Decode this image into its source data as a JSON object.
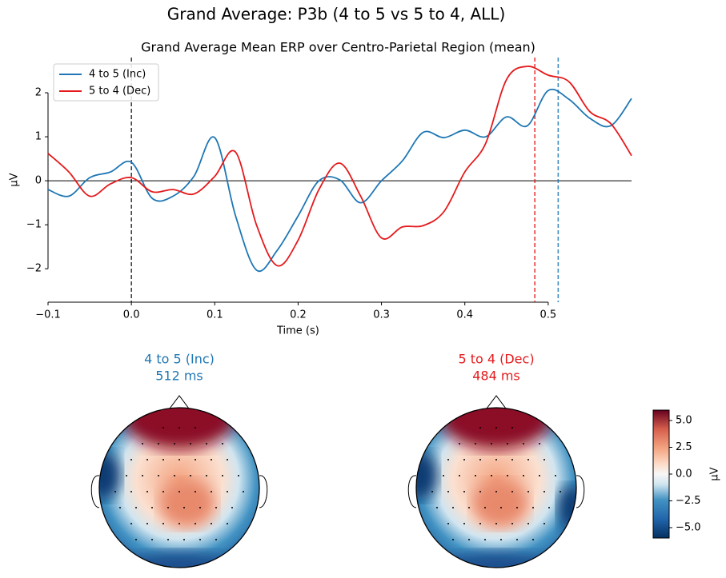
{
  "suptitle": "Grand Average: P3b (4 to 5 vs 5 to 4, ALL)",
  "chart_data": [
    {
      "type": "line",
      "title": "Grand Average Mean ERP over Centro-Parietal Region (mean)",
      "xlabel": "Time (s)",
      "ylabel": "µV",
      "x": [
        -0.1,
        -0.075,
        -0.05,
        -0.025,
        0,
        0.025,
        0.05,
        0.075,
        0.1,
        0.125,
        0.15,
        0.175,
        0.2,
        0.225,
        0.25,
        0.275,
        0.3,
        0.325,
        0.35,
        0.375,
        0.4,
        0.425,
        0.45,
        0.475,
        0.5,
        0.525,
        0.55,
        0.575,
        0.6
      ],
      "series": [
        {
          "name": "4 to 5 (Inc)",
          "color": "#1f77b4",
          "values": [
            -0.2,
            -0.35,
            0.07,
            0.2,
            0.42,
            -0.4,
            -0.35,
            0.1,
            0.98,
            -0.8,
            -2.03,
            -1.58,
            -0.8,
            0,
            0.02,
            -0.5,
            0,
            0.45,
            1.1,
            0.98,
            1.15,
            1.0,
            1.45,
            1.25,
            2.05,
            1.85,
            1.42,
            1.25,
            1.87
          ]
        },
        {
          "name": "5 to 4 (Dec)",
          "color": "#e41a1c",
          "values": [
            0.62,
            0.2,
            -0.35,
            -0.07,
            0.07,
            -0.25,
            -0.2,
            -0.3,
            0.1,
            0.65,
            -1.0,
            -1.93,
            -1.35,
            -0.2,
            0.4,
            -0.35,
            -1.3,
            -1.05,
            -1.02,
            -0.7,
            0.2,
            0.85,
            2.3,
            2.6,
            2.4,
            2.25,
            1.57,
            1.3,
            0.57
          ]
        }
      ],
      "vlines": [
        {
          "x": 0,
          "color": "#000000"
        },
        {
          "x": 0.484,
          "color": "#e41a1c"
        },
        {
          "x": 0.512,
          "color": "#1f77b4"
        }
      ],
      "hline": 0,
      "xlim": [
        -0.1,
        0.6
      ],
      "ylim": [
        -2.76,
        2.8
      ],
      "xticks": [
        {
          "value": -0.1,
          "label": "−0.1"
        },
        {
          "value": 0,
          "label": "0.0"
        },
        0.1,
        0.2,
        0.3,
        0.4,
        0.5
      ],
      "yticks": [
        {
          "value": -2,
          "label": "−2"
        },
        {
          "value": -1,
          "label": "−1"
        },
        0,
        1,
        2
      ],
      "legend": "upper left"
    },
    {
      "type": "topomap",
      "maps": [
        {
          "title": "4 to 5 (Inc)",
          "time_label": "512 ms",
          "color": "#1f77b4"
        },
        {
          "title": "5 to 4 (Dec)",
          "time_label": "484 ms",
          "color": "#e41a1c"
        }
      ],
      "colorbar_label": "µV",
      "clim": [
        -5.97,
        5.97
      ],
      "cticks": [
        {
          "value": -5,
          "label": "−5.0"
        },
        {
          "value": -2.5,
          "label": "−2.5"
        },
        {
          "value": 0,
          "label": "0.0"
        },
        2.5,
        {
          "value": 5,
          "label": "5.0"
        }
      ]
    }
  ]
}
